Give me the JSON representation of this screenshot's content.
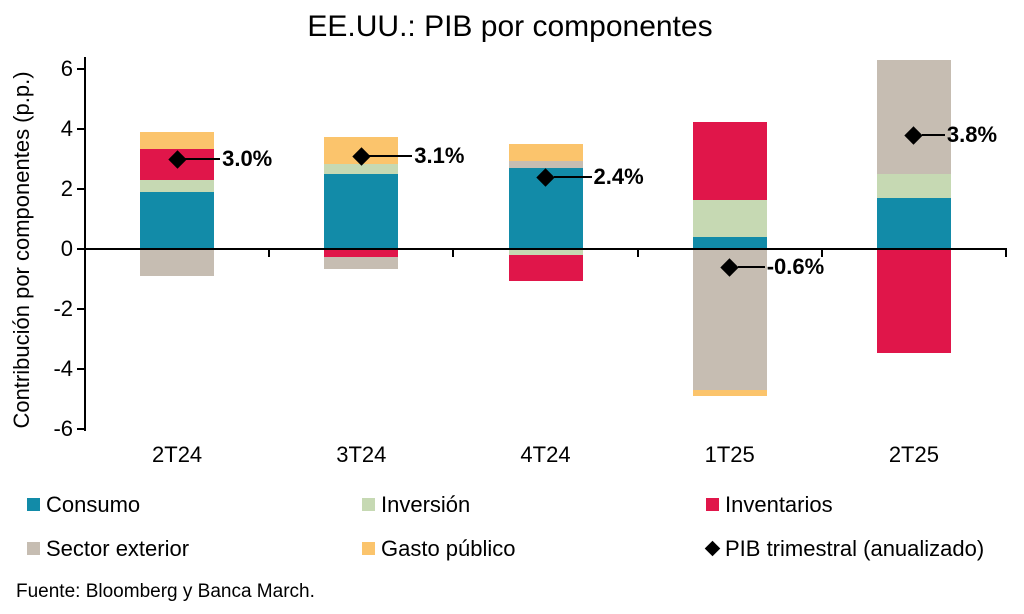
{
  "title": "EE.UU.: PIB por componentes",
  "y_axis_title": "Contribución por componentes (p.p.)",
  "source": "Fuente: Bloomberg y Banca March.",
  "colors": {
    "consumo": "#128BA8",
    "inversion": "#C6D9B3",
    "inventarios": "#E0164A",
    "sector_exterior": "#C6BDB2",
    "gasto_publico": "#FBC46C",
    "pib_marker": "#000000",
    "axis": "#000000"
  },
  "chart_data": {
    "type": "bar",
    "stacked": true,
    "title": "EE.UU.: PIB por componentes",
    "ylabel": "Contribución por componentes (p.p.)",
    "xlabel": "",
    "ylim": [
      -6,
      6
    ],
    "y_tick_step": 2,
    "y_ticks": [
      "6",
      "4",
      "2",
      "0",
      "-2",
      "-4",
      "-6"
    ],
    "grid": false,
    "legend_position": "bottom",
    "categories": [
      "2T24",
      "3T24",
      "4T24",
      "1T25",
      "2T25"
    ],
    "series": [
      {
        "name": "Consumo",
        "color_key": "consumo",
        "values": [
          1.9,
          2.5,
          2.7,
          0.4,
          1.7
        ]
      },
      {
        "name": "Inversión",
        "color_key": "inversion",
        "values": [
          0.4,
          0.35,
          -0.2,
          1.25,
          0.8
        ]
      },
      {
        "name": "Inventarios",
        "color_key": "inventarios",
        "values": [
          1.05,
          -0.25,
          -0.85,
          2.6,
          -3.45
        ]
      },
      {
        "name": "Sector exterior",
        "color_key": "sector_exterior",
        "values": [
          -0.9,
          -0.4,
          0.25,
          -4.7,
          3.8
        ]
      },
      {
        "name": "Gasto público",
        "color_key": "gasto_publico",
        "values": [
          0.55,
          0.9,
          0.55,
          -0.2,
          0
        ]
      }
    ],
    "line_series": {
      "name": "PIB trimestral (anualizado)",
      "marker": "diamond",
      "color_key": "pib_marker",
      "values": [
        3.0,
        3.1,
        2.4,
        -0.6,
        3.8
      ],
      "labels": [
        "3.0%",
        "3.1%",
        "2.4%",
        "-0.6%",
        "3.8%"
      ]
    }
  },
  "legend": {
    "rows": [
      [
        {
          "label": "Consumo",
          "marker": "square",
          "color_key": "consumo"
        },
        {
          "label": "Inversión",
          "marker": "square",
          "color_key": "inversion"
        },
        {
          "label": "Inventarios",
          "marker": "square",
          "color_key": "inventarios"
        }
      ],
      [
        {
          "label": "Sector exterior",
          "marker": "square",
          "color_key": "sector_exterior"
        },
        {
          "label": "Gasto público",
          "marker": "square",
          "color_key": "gasto_publico"
        },
        {
          "label": "PIB trimestral (anualizado)",
          "marker": "diamond",
          "color_key": "pib_marker"
        }
      ]
    ]
  }
}
